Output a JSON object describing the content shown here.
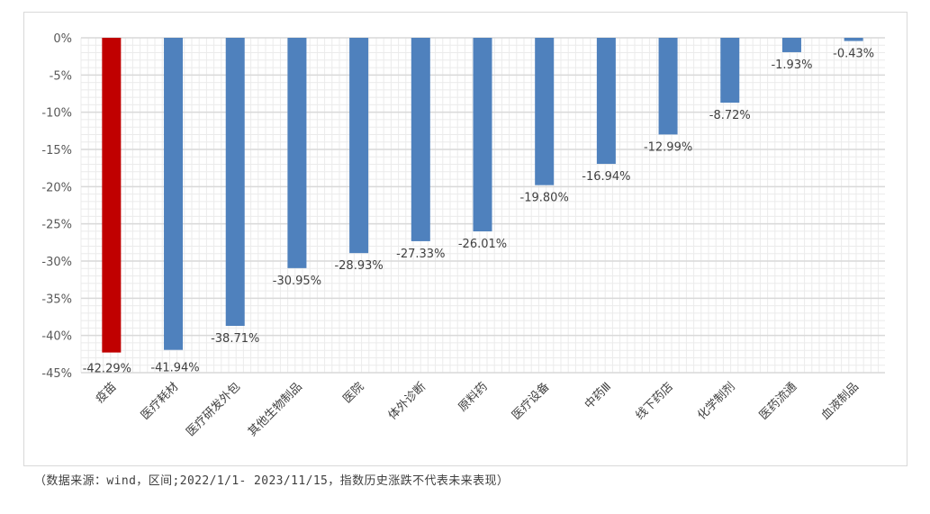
{
  "chart_data": {
    "type": "bar",
    "categories": [
      "疫苗",
      "医疗耗材",
      "医疗研发外包",
      "其他生物制品",
      "医院",
      "体外诊断",
      "原料药",
      "医疗设备",
      "中药Ⅲ",
      "线下药店",
      "化学制剂",
      "医药流通",
      "血液制品"
    ],
    "values": [
      -42.29,
      -41.94,
      -38.71,
      -30.95,
      -28.93,
      -27.33,
      -26.01,
      -19.8,
      -16.94,
      -12.99,
      -8.72,
      -1.93,
      -0.43
    ],
    "data_labels": [
      "-42.29%",
      "-41.94%",
      "-38.71%",
      "-30.95%",
      "-28.93%",
      "-27.33%",
      "-26.01%",
      "-19.80%",
      "-16.94%",
      "-12.99%",
      "-8.72%",
      "-1.93%",
      "-0.43%"
    ],
    "y_ticks": [
      0,
      -5,
      -10,
      -15,
      -20,
      -25,
      -30,
      -35,
      -40,
      -45
    ],
    "y_tick_labels": [
      "0%",
      "-5%",
      "-10%",
      "-15%",
      "-20%",
      "-25%",
      "-30%",
      "-35%",
      "-40%",
      "-45%"
    ],
    "ylim": [
      -45,
      0
    ],
    "grid": true,
    "colors": {
      "highlight": "#c00000",
      "default": "#4f81bd",
      "grid_major": "#d9d9d9",
      "grid_minor": "#ebebeb"
    },
    "highlight_index": 0
  },
  "footnote": "（数据来源：wind，区间;2022/1/1- 2023/11/15，指数历史涨跌不代表未来表现）"
}
